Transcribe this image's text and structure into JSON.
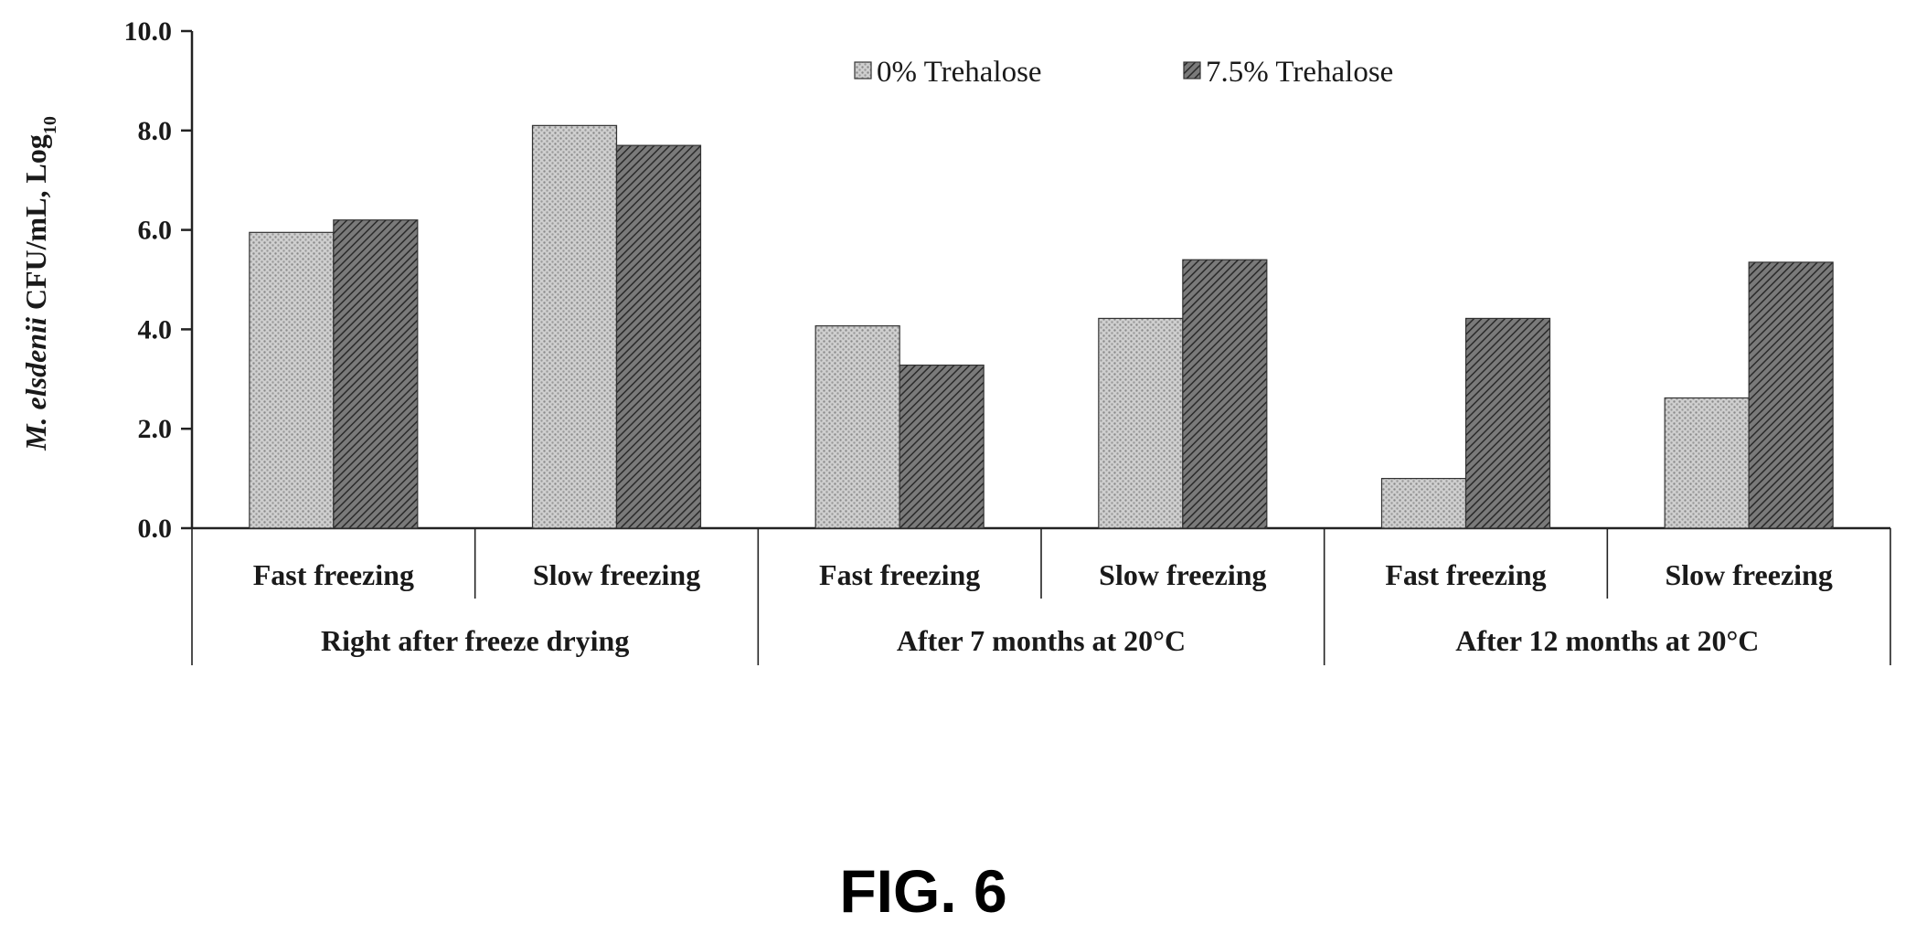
{
  "figure_label": "FIG. 6",
  "chart_data": {
    "type": "bar",
    "ylabel": {
      "italic": "M. elsdenii",
      "main": " CFU/mL, Log",
      "sub": "10"
    },
    "ylim": [
      0,
      10
    ],
    "yticks": [
      "0.0",
      "2.0",
      "4.0",
      "6.0",
      "8.0",
      "10.0"
    ],
    "grid": false,
    "legend_position": "top-right",
    "categories": [
      "Fast freezing",
      "Slow freezing",
      "Fast freezing",
      "Slow freezing",
      "Fast freezing",
      "Slow freezing"
    ],
    "groups": [
      {
        "label": "Right after freeze drying",
        "span": 2
      },
      {
        "label": "After 7 months at 20°C",
        "span": 2
      },
      {
        "label": "After 12 months at 20°C",
        "span": 2
      }
    ],
    "series": [
      {
        "name": "0% Trehalose",
        "values": [
          5.95,
          8.1,
          4.07,
          4.22,
          1.0,
          2.62
        ]
      },
      {
        "name": "7.5% Trehalose",
        "values": [
          6.2,
          7.7,
          3.28,
          5.4,
          4.22,
          5.35
        ]
      }
    ],
    "colors": {
      "series0_bg": "#c9c9c9",
      "series0_dot": "#8a8a8a",
      "series1_bg": "#6e6e6e",
      "series1_line": "#2a2a2a",
      "axis": "#222222"
    }
  }
}
